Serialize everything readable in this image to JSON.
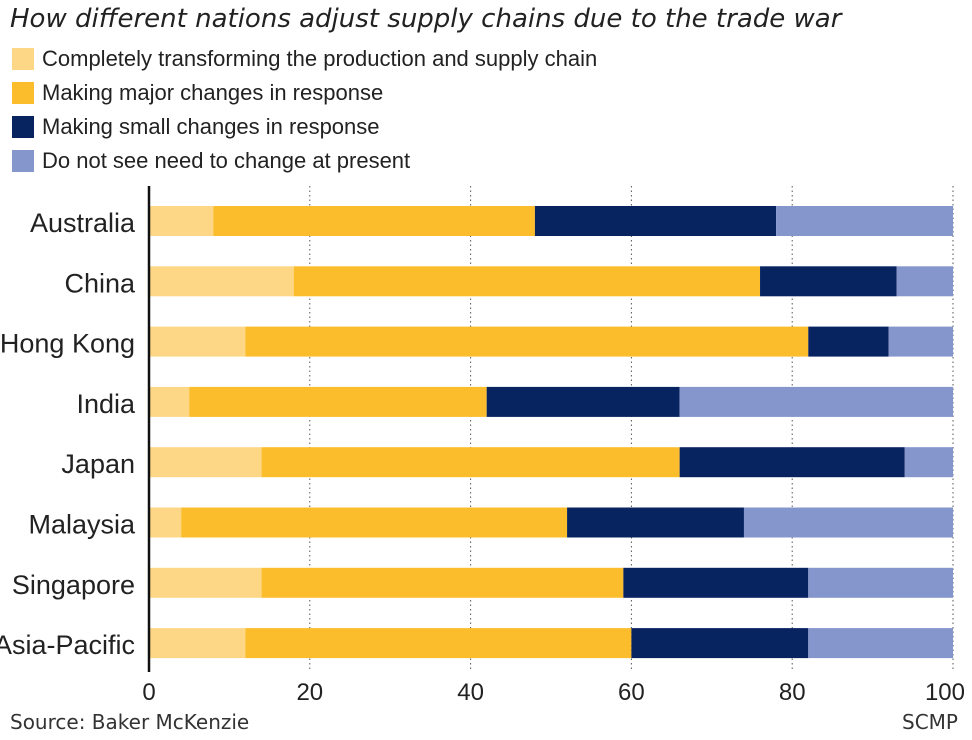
{
  "chart_data": {
    "type": "bar",
    "orientation": "horizontal",
    "stacked": true,
    "title": "How different nations adjust supply chains due to the trade war",
    "categories": [
      "Australia",
      "China",
      "Hong Kong",
      "India",
      "Japan",
      "Malaysia",
      "Singapore",
      "Asia-Pacific"
    ],
    "series": [
      {
        "name": "Completely transforming the production and supply chain",
        "color": "#fdd785",
        "values": [
          8,
          18,
          12,
          5,
          14,
          4,
          14,
          12
        ]
      },
      {
        "name": "Making major changes in response",
        "color": "#fbbd2c",
        "values": [
          40,
          58,
          70,
          37,
          52,
          48,
          45,
          48
        ]
      },
      {
        "name": "Making small changes in response",
        "color": "#082460",
        "values": [
          30,
          17,
          10,
          24,
          28,
          22,
          23,
          22
        ]
      },
      {
        "name": "Do not see need to change at present",
        "color": "#8596cc",
        "values": [
          22,
          7,
          8,
          34,
          6,
          26,
          18,
          18
        ]
      }
    ],
    "xticks": [
      "0",
      "20",
      "40",
      "60",
      "80",
      "100"
    ],
    "xlim": [
      0,
      100
    ],
    "grid": "vertical dotted",
    "legend_position": "top-left"
  },
  "footer": {
    "source": "Source: Baker McKenzie",
    "credit": "SCMP"
  }
}
